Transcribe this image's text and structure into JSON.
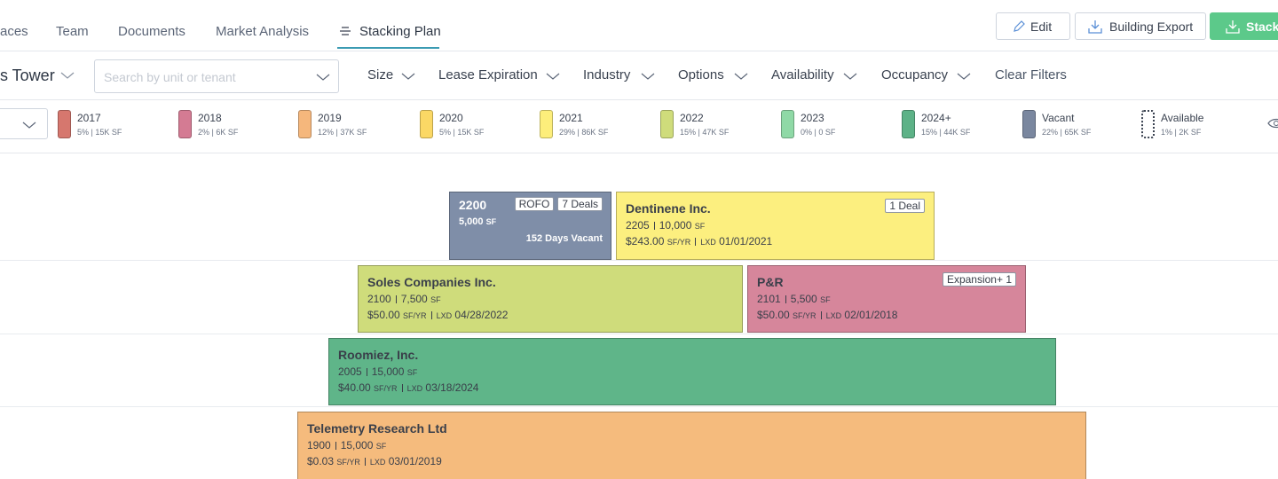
{
  "nav": {
    "tabs": [
      "aces",
      "Team",
      "Documents",
      "Market Analysis",
      "Stacking Plan"
    ]
  },
  "actions": [
    "Edit",
    "Building Export",
    "Stack"
  ],
  "filters": {
    "building": "s Tower",
    "search_placeholder": "Search by unit or tenant",
    "dropdowns": [
      "Size",
      "Lease Expiration",
      "Industry",
      "Options",
      "Availability",
      "Occupancy"
    ],
    "clear": "Clear Filters"
  },
  "legend": [
    {
      "label": "2017",
      "detail": "5% | 15K SF",
      "color": "#d6776e"
    },
    {
      "label": "2018",
      "detail": "2% | 6K SF",
      "color": "#d47b93"
    },
    {
      "label": "2019",
      "detail": "12% | 37K SF",
      "color": "#f5b77c"
    },
    {
      "label": "2020",
      "detail": "5% | 15K SF",
      "color": "#fbd865"
    },
    {
      "label": "2021",
      "detail": "29% | 86K SF",
      "color": "#fdee7b"
    },
    {
      "label": "2022",
      "detail": "15% | 47K SF",
      "color": "#cfdc7b"
    },
    {
      "label": "2023",
      "detail": "0% | 0 SF",
      "color": "#8fd9a6"
    },
    {
      "label": "2024+",
      "detail": "15% | 44K SF",
      "color": "#5db287"
    },
    {
      "label": "Vacant",
      "detail": "22% | 65K SF",
      "color": "#7a879f"
    },
    {
      "label": "Available",
      "detail": "1% | 2K SF",
      "color": "#ffffff"
    }
  ],
  "unit_labels": {
    "sf": "SF",
    "rent_unit": "SF/YR",
    "lxd": "LXD"
  },
  "floors": [
    {
      "units": [
        {
          "suite": "2200",
          "area": "5,000",
          "tags": [
            "ROFO",
            "7 Deals"
          ],
          "vacancy": "152 Days Vacant",
          "color": "#7f8ea8"
        },
        {
          "tenant": "Dentinene Inc.",
          "suite": "2205",
          "area": "10,000",
          "rent": "$243.00",
          "expiration": "01/01/2021",
          "tags": [
            "1 Deal"
          ],
          "color": "#fcef7f"
        }
      ]
    },
    {
      "units": [
        {
          "tenant": "Soles Companies Inc.",
          "suite": "2100",
          "area": "7,500",
          "rent": "$50.00",
          "expiration": "04/28/2022",
          "color": "#cfdc7b"
        },
        {
          "tenant": "P&R",
          "suite": "2101",
          "area": "5,500",
          "rent": "$50.00",
          "expiration": "02/01/2018",
          "tags": [
            "Expansion+ 1"
          ],
          "color": "#d6869b"
        }
      ]
    },
    {
      "units": [
        {
          "tenant": "Roomiez, Inc.",
          "suite": "2005",
          "area": "15,000",
          "rent": "$40.00",
          "expiration": "03/18/2024",
          "color": "#5fb589"
        }
      ]
    },
    {
      "units": [
        {
          "tenant": "Telemetry Research Ltd",
          "suite": "1900",
          "area": "15,000",
          "rent": "$0.03",
          "expiration": "03/01/2019",
          "color": "#f5bb7d"
        }
      ]
    }
  ]
}
